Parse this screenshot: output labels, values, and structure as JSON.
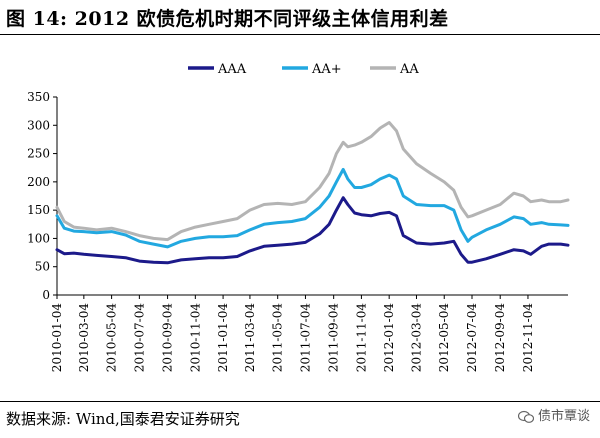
{
  "title": "图 14:  2012 欧债危机时期不同评级主体信用利差",
  "source": "数据来源:  Wind,国泰君安证券研究",
  "watermark": "债市覃谈",
  "chart_data": {
    "type": "line",
    "title": "",
    "xlabel": "",
    "ylabel": "",
    "ylim": [
      0,
      350
    ],
    "y_ticks": [
      0,
      50,
      100,
      150,
      200,
      250,
      300,
      350
    ],
    "x_range": [
      "2010-01-04",
      "2013-01-31"
    ],
    "x_ticks": [
      "2010-01-04",
      "2010-03-04",
      "2010-05-04",
      "2010-07-04",
      "2010-09-04",
      "2010-11-04",
      "2011-01-04",
      "2011-03-04",
      "2011-05-04",
      "2011-07-04",
      "2011-09-04",
      "2011-11-04",
      "2012-01-04",
      "2012-03-04",
      "2012-05-04",
      "2012-07-04",
      "2012-09-04",
      "2012-11-04"
    ],
    "grid": false,
    "legend": "top",
    "series": [
      {
        "name": "AAA",
        "color": "#1c1a8a",
        "points": [
          [
            "2010-01-04",
            80
          ],
          [
            "2010-01-20",
            73
          ],
          [
            "2010-02-10",
            74
          ],
          [
            "2010-03-04",
            72
          ],
          [
            "2010-04-01",
            70
          ],
          [
            "2010-05-04",
            68
          ],
          [
            "2010-06-04",
            66
          ],
          [
            "2010-07-04",
            60
          ],
          [
            "2010-08-04",
            58
          ],
          [
            "2010-09-04",
            57
          ],
          [
            "2010-10-04",
            62
          ],
          [
            "2010-11-04",
            64
          ],
          [
            "2010-12-04",
            66
          ],
          [
            "2011-01-04",
            66
          ],
          [
            "2011-02-04",
            68
          ],
          [
            "2011-03-04",
            78
          ],
          [
            "2011-04-04",
            86
          ],
          [
            "2011-05-04",
            88
          ],
          [
            "2011-06-04",
            90
          ],
          [
            "2011-07-04",
            93
          ],
          [
            "2011-08-04",
            108
          ],
          [
            "2011-08-25",
            125
          ],
          [
            "2011-09-10",
            150
          ],
          [
            "2011-09-25",
            172
          ],
          [
            "2011-10-05",
            160
          ],
          [
            "2011-10-20",
            145
          ],
          [
            "2011-11-04",
            142
          ],
          [
            "2011-11-25",
            140
          ],
          [
            "2011-12-15",
            144
          ],
          [
            "2012-01-04",
            146
          ],
          [
            "2012-01-20",
            140
          ],
          [
            "2012-02-04",
            105
          ],
          [
            "2012-03-04",
            92
          ],
          [
            "2012-04-04",
            90
          ],
          [
            "2012-05-04",
            92
          ],
          [
            "2012-05-25",
            95
          ],
          [
            "2012-06-10",
            72
          ],
          [
            "2012-06-25",
            58
          ],
          [
            "2012-07-04",
            58
          ],
          [
            "2012-08-04",
            64
          ],
          [
            "2012-09-04",
            72
          ],
          [
            "2012-10-04",
            80
          ],
          [
            "2012-10-25",
            78
          ],
          [
            "2012-11-10",
            72
          ],
          [
            "2012-12-04",
            86
          ],
          [
            "2012-12-20",
            90
          ],
          [
            "2013-01-15",
            90
          ],
          [
            "2013-01-31",
            88
          ]
        ]
      },
      {
        "name": "AA+",
        "color": "#22a8e0",
        "points": [
          [
            "2010-01-04",
            140
          ],
          [
            "2010-01-20",
            118
          ],
          [
            "2010-02-10",
            113
          ],
          [
            "2010-03-04",
            112
          ],
          [
            "2010-04-01",
            110
          ],
          [
            "2010-05-04",
            112
          ],
          [
            "2010-06-04",
            106
          ],
          [
            "2010-07-04",
            95
          ],
          [
            "2010-08-04",
            90
          ],
          [
            "2010-09-04",
            85
          ],
          [
            "2010-10-04",
            95
          ],
          [
            "2010-11-04",
            100
          ],
          [
            "2010-12-04",
            103
          ],
          [
            "2011-01-04",
            103
          ],
          [
            "2011-02-04",
            105
          ],
          [
            "2011-03-04",
            115
          ],
          [
            "2011-04-04",
            125
          ],
          [
            "2011-05-04",
            128
          ],
          [
            "2011-06-04",
            130
          ],
          [
            "2011-07-04",
            135
          ],
          [
            "2011-08-04",
            155
          ],
          [
            "2011-08-25",
            175
          ],
          [
            "2011-09-10",
            200
          ],
          [
            "2011-09-25",
            222
          ],
          [
            "2011-10-05",
            205
          ],
          [
            "2011-10-20",
            190
          ],
          [
            "2011-11-04",
            190
          ],
          [
            "2011-11-25",
            195
          ],
          [
            "2011-12-15",
            205
          ],
          [
            "2012-01-04",
            212
          ],
          [
            "2012-01-20",
            205
          ],
          [
            "2012-02-04",
            175
          ],
          [
            "2012-03-04",
            160
          ],
          [
            "2012-04-04",
            158
          ],
          [
            "2012-05-04",
            158
          ],
          [
            "2012-05-25",
            150
          ],
          [
            "2012-06-10",
            115
          ],
          [
            "2012-06-25",
            95
          ],
          [
            "2012-07-04",
            102
          ],
          [
            "2012-08-04",
            115
          ],
          [
            "2012-09-04",
            125
          ],
          [
            "2012-10-04",
            138
          ],
          [
            "2012-10-25",
            135
          ],
          [
            "2012-11-10",
            125
          ],
          [
            "2012-12-04",
            128
          ],
          [
            "2012-12-20",
            125
          ],
          [
            "2013-01-15",
            124
          ],
          [
            "2013-01-31",
            123
          ]
        ]
      },
      {
        "name": "AA",
        "color": "#b4b4b4",
        "points": [
          [
            "2010-01-04",
            155
          ],
          [
            "2010-01-20",
            130
          ],
          [
            "2010-02-10",
            120
          ],
          [
            "2010-03-04",
            118
          ],
          [
            "2010-04-01",
            115
          ],
          [
            "2010-05-04",
            118
          ],
          [
            "2010-06-04",
            112
          ],
          [
            "2010-07-04",
            105
          ],
          [
            "2010-08-04",
            100
          ],
          [
            "2010-09-04",
            98
          ],
          [
            "2010-10-04",
            112
          ],
          [
            "2010-11-04",
            120
          ],
          [
            "2010-12-04",
            125
          ],
          [
            "2011-01-04",
            130
          ],
          [
            "2011-02-04",
            135
          ],
          [
            "2011-03-04",
            150
          ],
          [
            "2011-04-04",
            160
          ],
          [
            "2011-05-04",
            162
          ],
          [
            "2011-06-04",
            160
          ],
          [
            "2011-07-04",
            165
          ],
          [
            "2011-08-04",
            190
          ],
          [
            "2011-08-25",
            215
          ],
          [
            "2011-09-10",
            250
          ],
          [
            "2011-09-25",
            270
          ],
          [
            "2011-10-05",
            262
          ],
          [
            "2011-10-20",
            265
          ],
          [
            "2011-11-04",
            270
          ],
          [
            "2011-11-25",
            280
          ],
          [
            "2011-12-15",
            295
          ],
          [
            "2012-01-04",
            305
          ],
          [
            "2012-01-20",
            290
          ],
          [
            "2012-02-04",
            258
          ],
          [
            "2012-03-04",
            232
          ],
          [
            "2012-04-04",
            215
          ],
          [
            "2012-05-04",
            200
          ],
          [
            "2012-05-25",
            185
          ],
          [
            "2012-06-10",
            155
          ],
          [
            "2012-06-25",
            138
          ],
          [
            "2012-07-04",
            140
          ],
          [
            "2012-08-04",
            150
          ],
          [
            "2012-09-04",
            160
          ],
          [
            "2012-10-04",
            180
          ],
          [
            "2012-10-25",
            175
          ],
          [
            "2012-11-10",
            165
          ],
          [
            "2012-12-04",
            168
          ],
          [
            "2012-12-20",
            165
          ],
          [
            "2013-01-15",
            165
          ],
          [
            "2013-01-31",
            168
          ]
        ]
      }
    ]
  }
}
